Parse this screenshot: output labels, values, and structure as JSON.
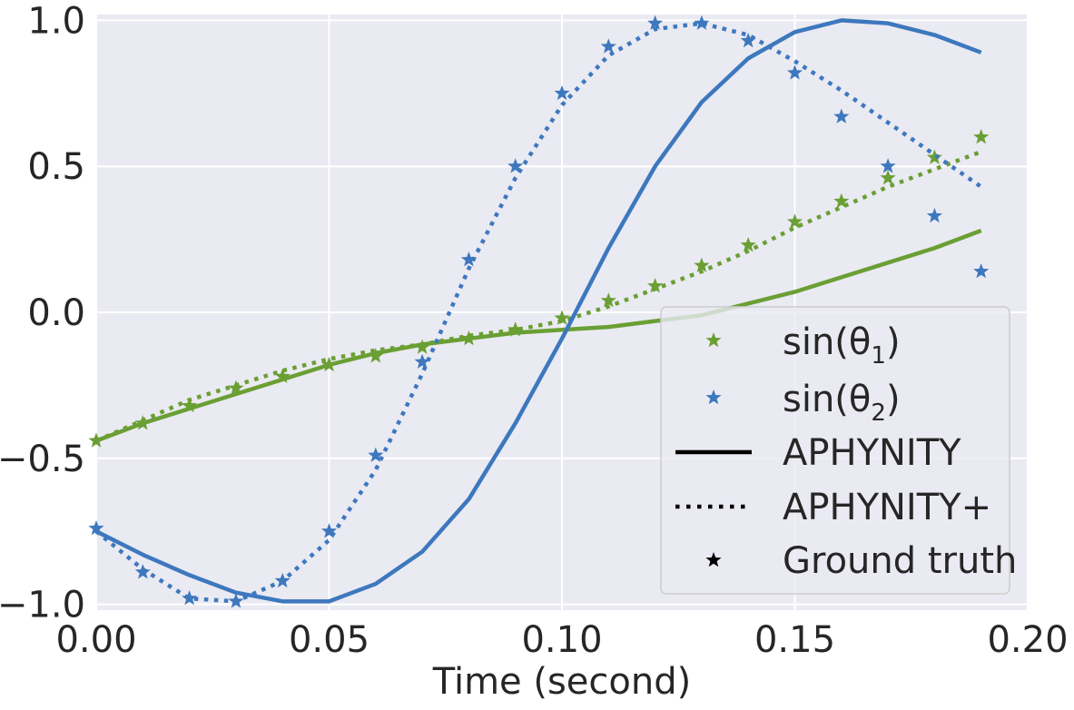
{
  "chart_data": {
    "type": "line",
    "title": "",
    "xlabel": "Time (second)",
    "ylabel": "",
    "xlim": [
      0.0,
      0.2
    ],
    "ylim": [
      -1.02,
      1.02
    ],
    "grid": true,
    "x_ticks": [
      0.0,
      0.05,
      0.1,
      0.15,
      0.2
    ],
    "x_tick_labels": [
      "0.00",
      "0.05",
      "0.10",
      "0.15",
      "0.20"
    ],
    "y_ticks": [
      1.0,
      0.5,
      0.0,
      -0.5,
      -1.0
    ],
    "y_tick_labels": [
      "1.0",
      "0.5",
      "0.0",
      "−0.5",
      "−1.0"
    ],
    "x": [
      0.0,
      0.01,
      0.02,
      0.03,
      0.04,
      0.05,
      0.06,
      0.07,
      0.08,
      0.09,
      0.1,
      0.11,
      0.12,
      0.13,
      0.14,
      0.15,
      0.16,
      0.17,
      0.18,
      0.19
    ],
    "colors": {
      "green": "#6a9f34",
      "blue": "#3d78be"
    },
    "series": [
      {
        "name": "sin(θ₁) APHYNITY",
        "style": "solid",
        "color": "#6a9f34",
        "values": [
          -0.44,
          -0.38,
          -0.33,
          -0.28,
          -0.23,
          -0.18,
          -0.14,
          -0.11,
          -0.09,
          -0.07,
          -0.06,
          -0.05,
          -0.03,
          -0.01,
          0.03,
          0.07,
          0.12,
          0.17,
          0.22,
          0.28
        ]
      },
      {
        "name": "sin(θ₁) APHYNITY+",
        "style": "dotted",
        "color": "#6a9f34",
        "values": [
          -0.44,
          -0.37,
          -0.3,
          -0.25,
          -0.2,
          -0.16,
          -0.13,
          -0.11,
          -0.08,
          -0.06,
          -0.03,
          0.02,
          0.08,
          0.14,
          0.21,
          0.29,
          0.36,
          0.43,
          0.49,
          0.55
        ]
      },
      {
        "name": "sin(θ₁) Ground truth",
        "style": "star",
        "color": "#6a9f34",
        "values": [
          -0.44,
          -0.38,
          -0.32,
          -0.26,
          -0.22,
          -0.18,
          -0.15,
          -0.12,
          -0.09,
          -0.06,
          -0.02,
          0.04,
          0.09,
          0.16,
          0.23,
          0.31,
          0.38,
          0.46,
          0.53,
          0.6
        ]
      },
      {
        "name": "sin(θ₂) APHYNITY",
        "style": "solid",
        "color": "#3d78be",
        "values": [
          -0.75,
          -0.83,
          -0.9,
          -0.96,
          -0.99,
          -0.99,
          -0.93,
          -0.82,
          -0.64,
          -0.38,
          -0.09,
          0.22,
          0.5,
          0.72,
          0.87,
          0.96,
          1.0,
          0.99,
          0.95,
          0.89
        ]
      },
      {
        "name": "sin(θ₂) APHYNITY+",
        "style": "dotted",
        "color": "#3d78be",
        "values": [
          -0.75,
          -0.88,
          -0.98,
          -0.99,
          -0.92,
          -0.78,
          -0.54,
          -0.21,
          0.15,
          0.46,
          0.71,
          0.88,
          0.97,
          0.99,
          0.95,
          0.86,
          0.76,
          0.65,
          0.54,
          0.43
        ]
      },
      {
        "name": "sin(θ₂) Ground truth",
        "style": "star",
        "color": "#3d78be",
        "values": [
          -0.74,
          -0.89,
          -0.98,
          -0.99,
          -0.92,
          -0.75,
          -0.49,
          -0.17,
          0.18,
          0.5,
          0.75,
          0.91,
          0.99,
          0.99,
          0.93,
          0.82,
          0.67,
          0.5,
          0.33,
          0.14
        ]
      }
    ],
    "legend": {
      "position": "bottom-right",
      "entries": [
        {
          "label": "sin(θ",
          "sub": "1",
          "close": ")",
          "marker": "star",
          "color": "#6a9f34"
        },
        {
          "label": "sin(θ",
          "sub": "2",
          "close": ")",
          "marker": "star",
          "color": "#3d78be"
        },
        {
          "label": "APHYNITY",
          "marker": "solid-line",
          "color": "#000000"
        },
        {
          "label": "APHYNITY+",
          "marker": "dotted-line",
          "color": "#000000"
        },
        {
          "label": "Ground truth",
          "marker": "star",
          "color": "#000000"
        }
      ]
    }
  }
}
